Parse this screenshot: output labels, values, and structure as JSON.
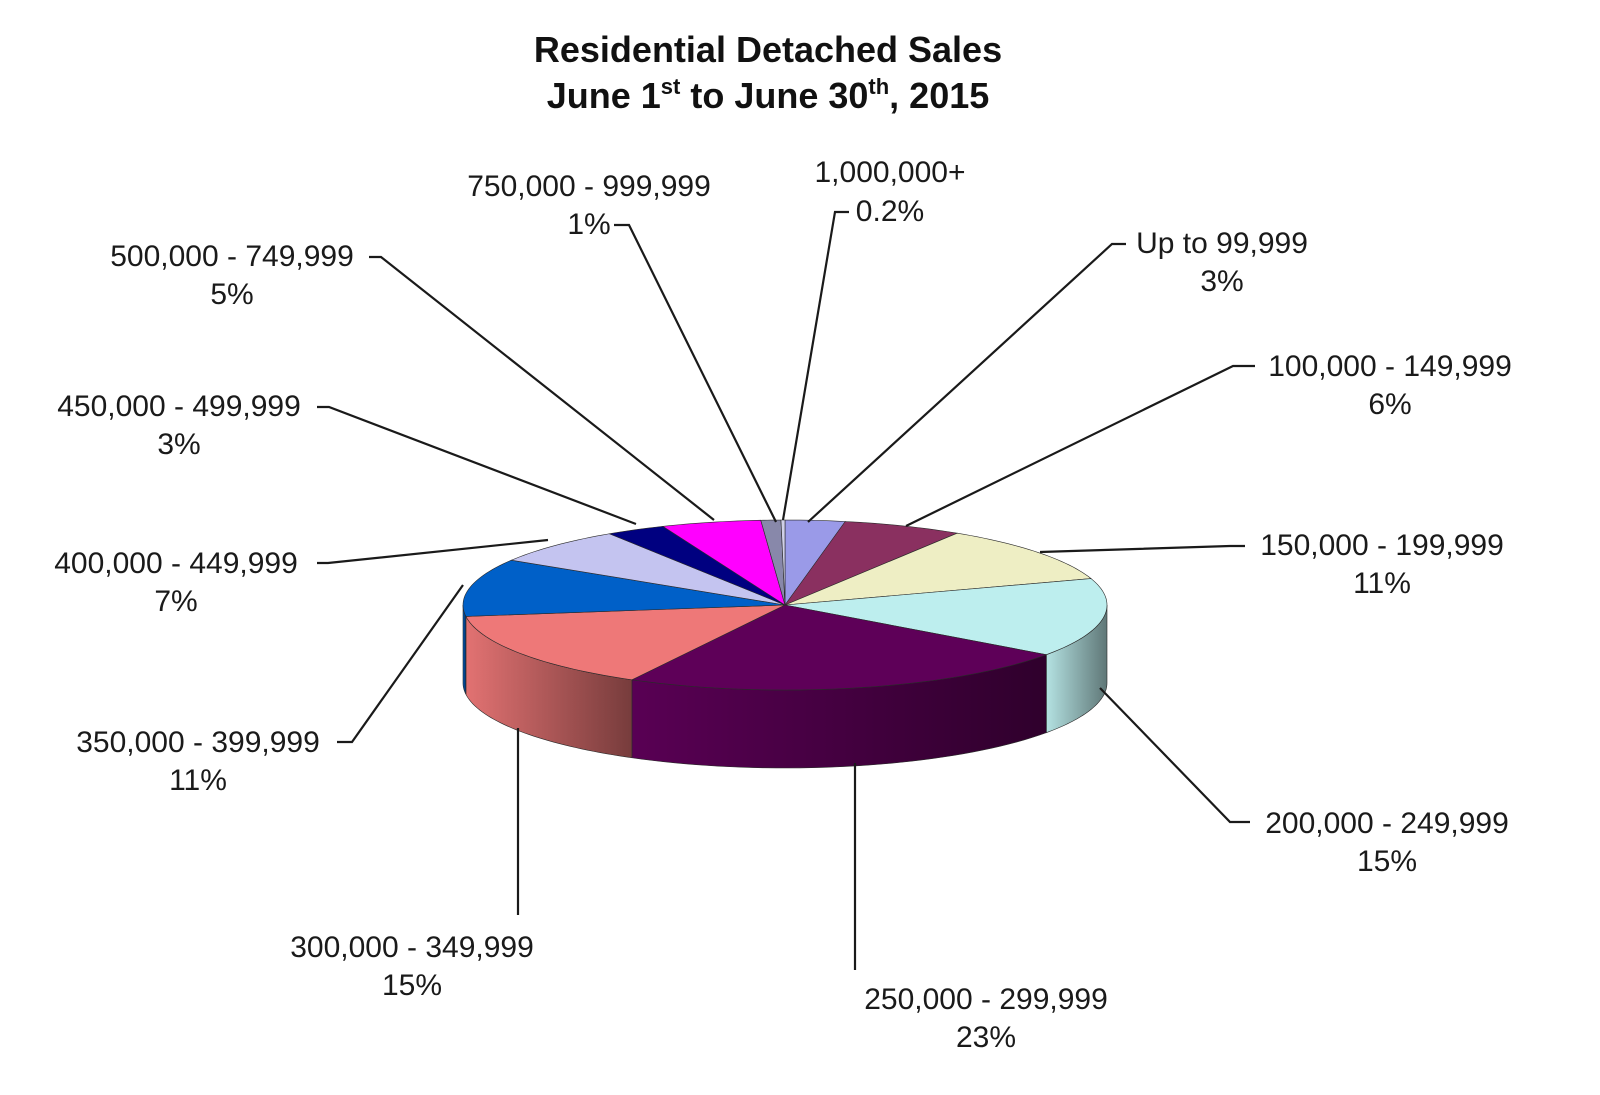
{
  "chart_data": {
    "type": "pie",
    "title_line1": "Residential Detached Sales",
    "title_line2_parts": {
      "a": "June 1",
      "sup1": "st",
      "b": " to June 30",
      "sup2": "th",
      "c": ", 2015"
    },
    "slices": [
      {
        "label": "Up to 99,999",
        "percent_label": "3%",
        "value": 3,
        "color": "#9a9ae8"
      },
      {
        "label": "100,000 - 149,999",
        "percent_label": "6%",
        "value": 6,
        "color": "#8a3060"
      },
      {
        "label": "150,000 - 199,999",
        "percent_label": "11%",
        "value": 11,
        "color": "#eeeec4"
      },
      {
        "label": "200,000 - 249,999",
        "percent_label": "15%",
        "value": 15,
        "color": "#bdeeee"
      },
      {
        "label": "250,000 - 299,999",
        "percent_label": "23%",
        "value": 23,
        "color": "#5e0058"
      },
      {
        "label": "300,000 - 349,999",
        "percent_label": "15%",
        "value": 15,
        "color": "#ee7878"
      },
      {
        "label": "350,000 - 399,999",
        "percent_label": "11%",
        "value": 11,
        "color": "#0060c8"
      },
      {
        "label": "400,000 - 449,999",
        "percent_label": "7%",
        "value": 7,
        "color": "#c4c4f0"
      },
      {
        "label": "450,000 - 499,999",
        "percent_label": "3%",
        "value": 3,
        "color": "#000080"
      },
      {
        "label": "500,000 - 749,999",
        "percent_label": "5%",
        "value": 5,
        "color": "#ff00ff"
      },
      {
        "label": "750,000 - 999,999",
        "percent_label": "1%",
        "value": 1,
        "color": "#8888aa"
      },
      {
        "label": "1,000,000+",
        "percent_label": "0.2%",
        "value": 0.2,
        "color": "#d0d0e8"
      }
    ]
  }
}
